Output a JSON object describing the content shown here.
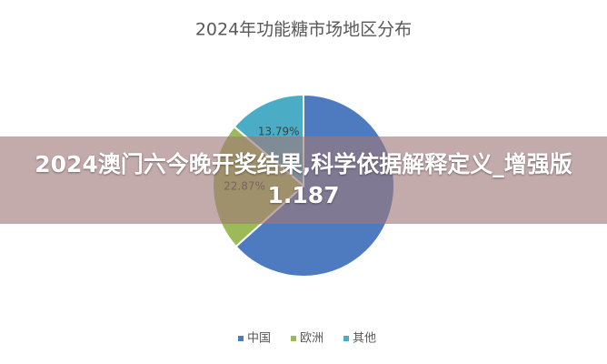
{
  "chart_data": {
    "type": "pie",
    "title": "2024年功能糖市场地区分布",
    "categories": [
      "中国",
      "欧洲",
      "其他"
    ],
    "values": [
      63.34,
      22.87,
      13.79
    ],
    "value_labels": [
      null,
      "22.87%",
      "13.79%"
    ],
    "colors": [
      "#4e7bbf",
      "#9bbb59",
      "#4bacc6"
    ],
    "legend": "bottom"
  },
  "banner": {
    "text": "2024澳门六今晚开奖结果,科学依据解释定义_增强版1.187"
  }
}
